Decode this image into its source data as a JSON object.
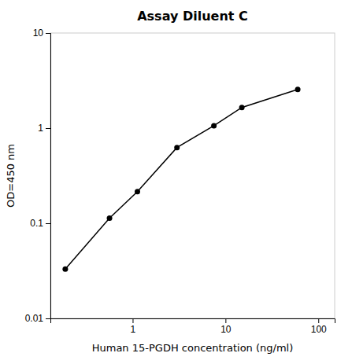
{
  "chart_data": {
    "type": "line",
    "title": "Assay Diluent C",
    "x_label": "Human 15-PGDH concentration (ng/ml)",
    "y_label": "OD=450 nm",
    "x": [
      0.188,
      0.563,
      1.125,
      3.0,
      7.5,
      15.0,
      60.0
    ],
    "values": [
      0.033,
      0.113,
      0.215,
      0.625,
      1.06,
      1.65,
      2.55
    ],
    "xlim": [
      0.13,
      150
    ],
    "ylim": [
      0.01,
      10
    ],
    "xticks": [
      1,
      10,
      100
    ],
    "yticks": [
      0.01,
      0.1,
      1,
      10
    ],
    "log": true,
    "grid": false,
    "color": "#000000",
    "marker": "circle"
  }
}
